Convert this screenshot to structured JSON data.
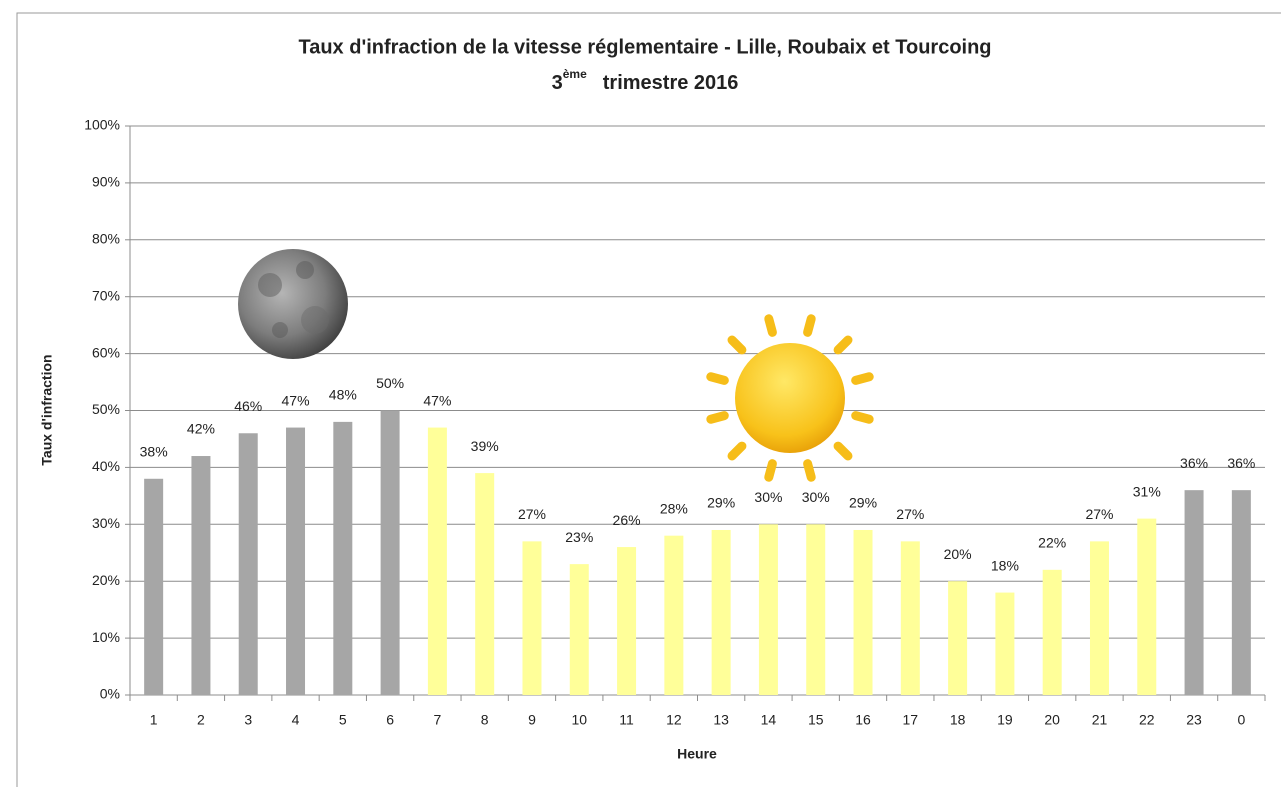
{
  "chart_data": {
    "type": "bar",
    "title": "Taux d'infraction de la vitesse réglementaire - Lille, Roubaix et Tourcoing",
    "subtitle_parts": [
      "3",
      "ème",
      "trimestre 2016"
    ],
    "x_label": "Heure",
    "y_label": "Taux d'infraction",
    "categories": [
      "1",
      "2",
      "3",
      "4",
      "5",
      "6",
      "7",
      "8",
      "9",
      "10",
      "11",
      "12",
      "13",
      "14",
      "15",
      "16",
      "17",
      "18",
      "19",
      "20",
      "21",
      "22",
      "23",
      "0"
    ],
    "values": [
      38,
      42,
      46,
      47,
      48,
      50,
      47,
      39,
      27,
      23,
      26,
      28,
      29,
      30,
      30,
      29,
      27,
      20,
      18,
      22,
      27,
      31,
      36,
      36
    ],
    "value_labels": [
      "38%",
      "42%",
      "46%",
      "47%",
      "48%",
      "50%",
      "47%",
      "39%",
      "27%",
      "23%",
      "26%",
      "28%",
      "29%",
      "30%",
      "30%",
      "29%",
      "27%",
      "20%",
      "18%",
      "22%",
      "27%",
      "31%",
      "36%",
      "36%"
    ],
    "colors": [
      "#a6a6a6",
      "#a6a6a6",
      "#a6a6a6",
      "#a6a6a6",
      "#a6a6a6",
      "#a6a6a6",
      "#ffff99",
      "#ffff99",
      "#ffff99",
      "#ffff99",
      "#ffff99",
      "#ffff99",
      "#ffff99",
      "#ffff99",
      "#ffff99",
      "#ffff99",
      "#ffff99",
      "#ffff99",
      "#ffff99",
      "#ffff99",
      "#ffff99",
      "#ffff99",
      "#a6a6a6",
      "#a6a6a6"
    ],
    "ylim": [
      0,
      100
    ],
    "yticks": [
      {
        "value": 0,
        "label": "0%"
      },
      {
        "value": 10,
        "label": "10%"
      },
      {
        "value": 20,
        "label": "20%"
      },
      {
        "value": 30,
        "label": "30%"
      },
      {
        "value": 40,
        "label": "40%"
      },
      {
        "value": 50,
        "label": "50%"
      },
      {
        "value": 60,
        "label": "60%"
      },
      {
        "value": 70,
        "label": "70%"
      },
      {
        "value": 80,
        "label": "80%"
      },
      {
        "value": 90,
        "label": "90%"
      },
      {
        "value": 100,
        "label": "100%"
      }
    ],
    "grid": true
  }
}
